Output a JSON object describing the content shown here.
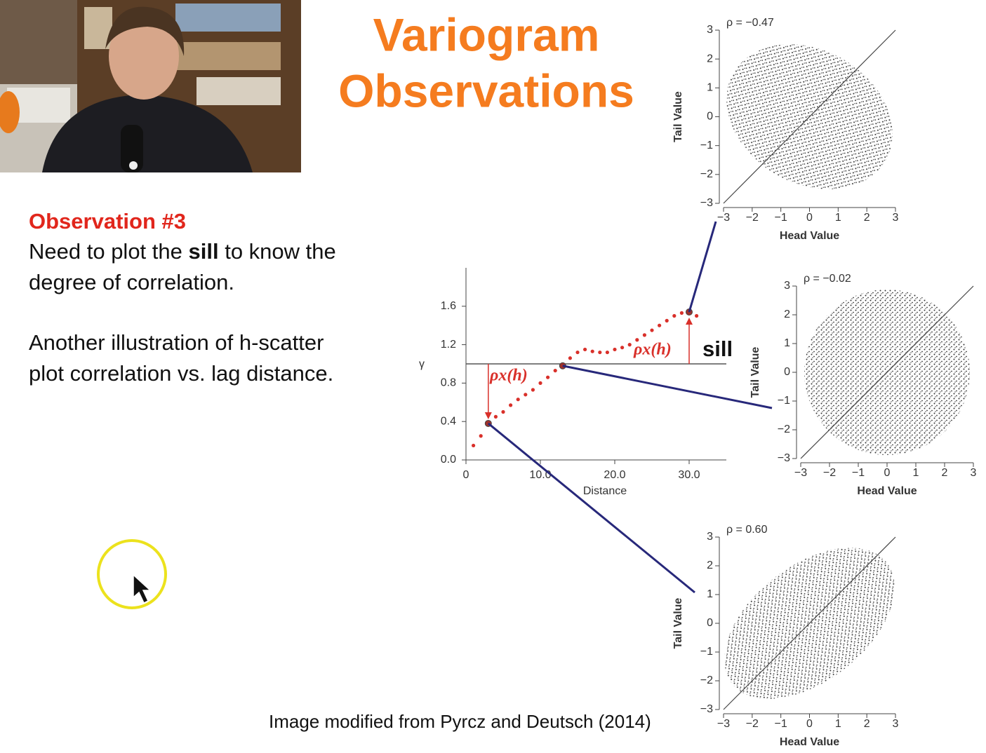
{
  "slide": {
    "title_lines": [
      "Variogram",
      "Observations"
    ],
    "observation": {
      "heading": "Observation #3",
      "paragraph1": [
        [
          "Need to plot the ",
          "sill",
          " to know the"
        ],
        [
          "degree of correlation."
        ]
      ],
      "paragraph2": [
        "Another illustration of h-scatter",
        "plot correlation vs. lag distance."
      ]
    },
    "citation": "Image modified from Pyrcz and Deutsch (2014)"
  },
  "chart_data": [
    {
      "type": "variogram",
      "ylabel": "γ",
      "xlabel": "Distance",
      "x": [
        1,
        2,
        3,
        4,
        5,
        6,
        7,
        8,
        9,
        10,
        11,
        12,
        13,
        14,
        15,
        16,
        17,
        18,
        19,
        20,
        21,
        22,
        23,
        24,
        25,
        26,
        27,
        28,
        29,
        30,
        31
      ],
      "values": [
        0.15,
        0.25,
        0.38,
        0.45,
        0.5,
        0.57,
        0.63,
        0.68,
        0.73,
        0.8,
        0.86,
        0.93,
        0.98,
        1.06,
        1.12,
        1.15,
        1.13,
        1.12,
        1.12,
        1.15,
        1.17,
        1.2,
        1.25,
        1.3,
        1.35,
        1.4,
        1.45,
        1.5,
        1.53,
        1.54,
        1.5
      ],
      "color": "#d9302a",
      "sill": 1,
      "annotations": [
        "ρx(h)",
        "ρx(h)",
        "sill"
      ],
      "xlim": [
        0,
        35
      ],
      "xticks": [
        0,
        {
          "value": 10,
          "label": "10.0"
        },
        {
          "value": 20,
          "label": "20.0"
        },
        {
          "value": 30,
          "label": "30.0"
        }
      ],
      "ylim": [
        0,
        2
      ],
      "yticks": [
        {
          "value": 0,
          "label": "0.0"
        },
        0.4,
        0.8,
        1.2,
        1.6
      ]
    },
    {
      "type": "scatter",
      "annotation": "ρ = −0.47",
      "xlabel": "Head Value",
      "ylabel": "Tail Value",
      "xlim": [
        -3,
        3
      ],
      "ylim": [
        -3,
        3
      ],
      "xticks": [
        {
          "value": -3,
          "label": "−3"
        },
        {
          "value": -2,
          "label": "−2"
        },
        {
          "value": -1,
          "label": "−1"
        },
        0,
        1,
        2,
        3
      ],
      "yticks": [
        {
          "value": -3,
          "label": "−3"
        },
        {
          "value": -2,
          "label": "−2"
        },
        {
          "value": -1,
          "label": "−1"
        },
        0,
        1,
        2,
        3
      ]
    },
    {
      "type": "scatter",
      "annotation": "ρ = −0.02",
      "xlabel": "Head Value",
      "ylabel": "Tail Value",
      "xlim": [
        -3,
        3
      ],
      "ylim": [
        -3,
        3
      ],
      "xticks": [
        {
          "value": -3,
          "label": "−3"
        },
        {
          "value": -2,
          "label": "−2"
        },
        {
          "value": -1,
          "label": "−1"
        },
        0,
        1,
        2,
        3
      ],
      "yticks": [
        {
          "value": -3,
          "label": "−3"
        },
        {
          "value": -2,
          "label": "−2"
        },
        {
          "value": -1,
          "label": "−1"
        },
        0,
        1,
        2,
        3
      ]
    },
    {
      "type": "scatter",
      "annotation": "ρ = 0.60",
      "xlabel": "Head Value",
      "ylabel": "Tail Value",
      "xlim": [
        -3,
        3
      ],
      "ylim": [
        -3,
        3
      ],
      "xticks": [
        {
          "value": -3,
          "label": "−3"
        },
        {
          "value": -2,
          "label": "−2"
        },
        {
          "value": -1,
          "label": "−1"
        },
        0,
        1,
        2,
        3
      ],
      "yticks": [
        {
          "value": -3,
          "label": "−3"
        },
        {
          "value": -2,
          "label": "−2"
        },
        {
          "value": -1,
          "label": "−1"
        },
        0,
        1,
        2,
        3
      ]
    }
  ]
}
